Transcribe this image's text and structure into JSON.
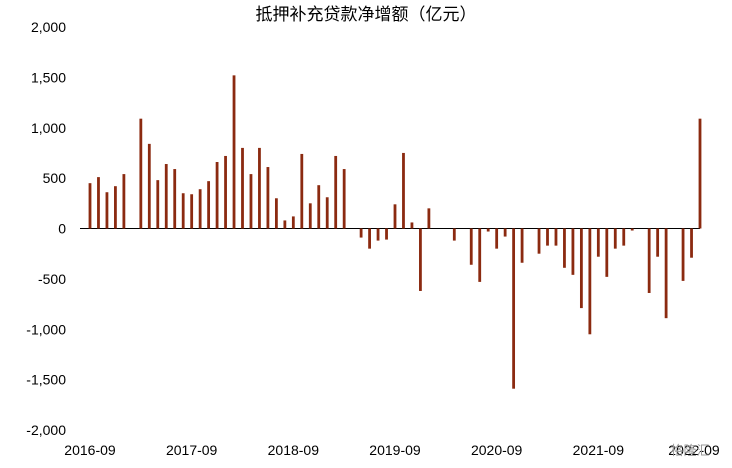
{
  "chart_data": {
    "type": "bar",
    "title": "抵押补充贷款净增额（亿元）",
    "xlabel": "",
    "ylabel": "",
    "ylim": [
      -2000,
      2000
    ],
    "yticks": [
      2000,
      1500,
      1000,
      500,
      0,
      -500,
      -1000,
      -1500,
      -2000
    ],
    "ytick_labels": [
      "2,000",
      "1,500",
      "1,000",
      "500",
      "0",
      "-500",
      "-1,000",
      "-1,500",
      "-2,000"
    ],
    "xtick_labels": [
      "2016-09",
      "2017-09",
      "2018-09",
      "2019-09",
      "2020-09",
      "2021-09",
      "2022-09"
    ],
    "legend": "none",
    "grid": false,
    "color": "#8B2A10",
    "categories": [
      "2016-09",
      "2016-10",
      "2016-11",
      "2016-12",
      "2017-01",
      "2017-02",
      "2017-03",
      "2017-04",
      "2017-05",
      "2017-06",
      "2017-07",
      "2017-08",
      "2017-09",
      "2017-10",
      "2017-11",
      "2017-12",
      "2018-01",
      "2018-02",
      "2018-03",
      "2018-04",
      "2018-05",
      "2018-06",
      "2018-07",
      "2018-08",
      "2018-09",
      "2018-10",
      "2018-11",
      "2018-12",
      "2019-01",
      "2019-02",
      "2019-03",
      "2019-04",
      "2019-05",
      "2019-06",
      "2019-07",
      "2019-08",
      "2019-09",
      "2019-10",
      "2019-11",
      "2019-12",
      "2020-01",
      "2020-02",
      "2020-03",
      "2020-04",
      "2020-05",
      "2020-06",
      "2020-07",
      "2020-08",
      "2020-09",
      "2020-10",
      "2020-11",
      "2020-12",
      "2021-01",
      "2021-02",
      "2021-03",
      "2021-04",
      "2021-05",
      "2021-06",
      "2021-07",
      "2021-08",
      "2021-09",
      "2021-10",
      "2021-11",
      "2021-12",
      "2022-01",
      "2022-02",
      "2022-03",
      "2022-04",
      "2022-05",
      "2022-06",
      "2022-07",
      "2022-08",
      "2022-09"
    ],
    "values": [
      450,
      510,
      360,
      420,
      540,
      0,
      1090,
      840,
      480,
      640,
      590,
      350,
      340,
      390,
      470,
      660,
      720,
      1520,
      800,
      540,
      800,
      610,
      300,
      80,
      120,
      740,
      250,
      430,
      310,
      720,
      590,
      0,
      -90,
      -200,
      -120,
      -110,
      240,
      750,
      60,
      -620,
      200,
      0,
      0,
      -120,
      0,
      -360,
      -530,
      -30,
      -200,
      -80,
      -1590,
      -340,
      0,
      -250,
      -170,
      -170,
      -390,
      -460,
      -790,
      -1050,
      -280,
      -480,
      -200,
      -170,
      -20,
      0,
      -640,
      -280,
      -890,
      0,
      -520,
      -290,
      1090
    ],
    "watermark": "格隆汇"
  }
}
